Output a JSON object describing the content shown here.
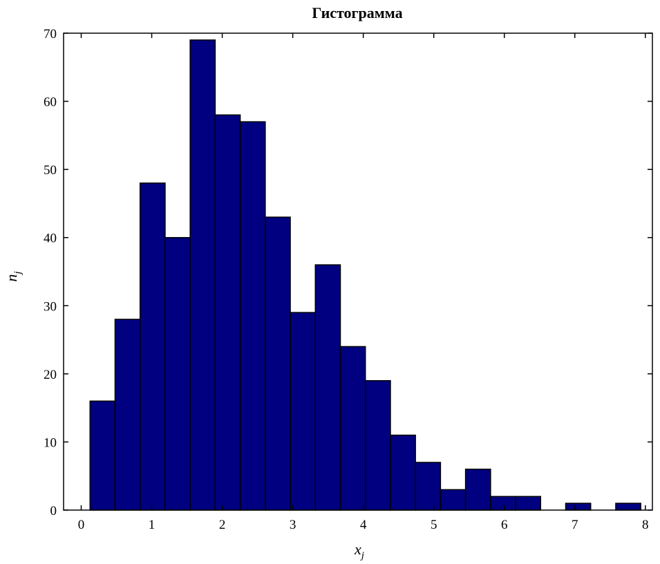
{
  "chart_data": {
    "type": "bar",
    "title": "Гистограмма",
    "xlabel": "x",
    "xlabel_sub": "j",
    "ylabel": "n",
    "ylabel_sub": "j",
    "xlim": [
      -0.25,
      8.1
    ],
    "ylim": [
      0,
      70
    ],
    "xticks": [
      0,
      1,
      2,
      3,
      4,
      5,
      6,
      7,
      8
    ],
    "yticks": [
      0,
      10,
      20,
      30,
      40,
      50,
      60,
      70
    ],
    "bin_width": 0.355,
    "bins": [
      {
        "x0": 0.125,
        "value": 16
      },
      {
        "x0": 0.48,
        "value": 28
      },
      {
        "x0": 0.835,
        "value": 48
      },
      {
        "x0": 1.19,
        "value": 40
      },
      {
        "x0": 1.545,
        "value": 69
      },
      {
        "x0": 1.9,
        "value": 58
      },
      {
        "x0": 2.255,
        "value": 57
      },
      {
        "x0": 2.61,
        "value": 43
      },
      {
        "x0": 2.965,
        "value": 29
      },
      {
        "x0": 3.32,
        "value": 36
      },
      {
        "x0": 3.675,
        "value": 24
      },
      {
        "x0": 4.03,
        "value": 19
      },
      {
        "x0": 4.385,
        "value": 11
      },
      {
        "x0": 4.74,
        "value": 7
      },
      {
        "x0": 5.095,
        "value": 3
      },
      {
        "x0": 5.45,
        "value": 6
      },
      {
        "x0": 5.805,
        "value": 2
      },
      {
        "x0": 6.16,
        "value": 2
      },
      {
        "x0": 6.515,
        "value": 0
      },
      {
        "x0": 6.87,
        "value": 1
      },
      {
        "x0": 7.225,
        "value": 0
      },
      {
        "x0": 7.58,
        "value": 1
      }
    ],
    "grid": false,
    "colors": {
      "bar_fill": "#000080",
      "bar_edge": "#000000",
      "axis": "#000000"
    }
  }
}
